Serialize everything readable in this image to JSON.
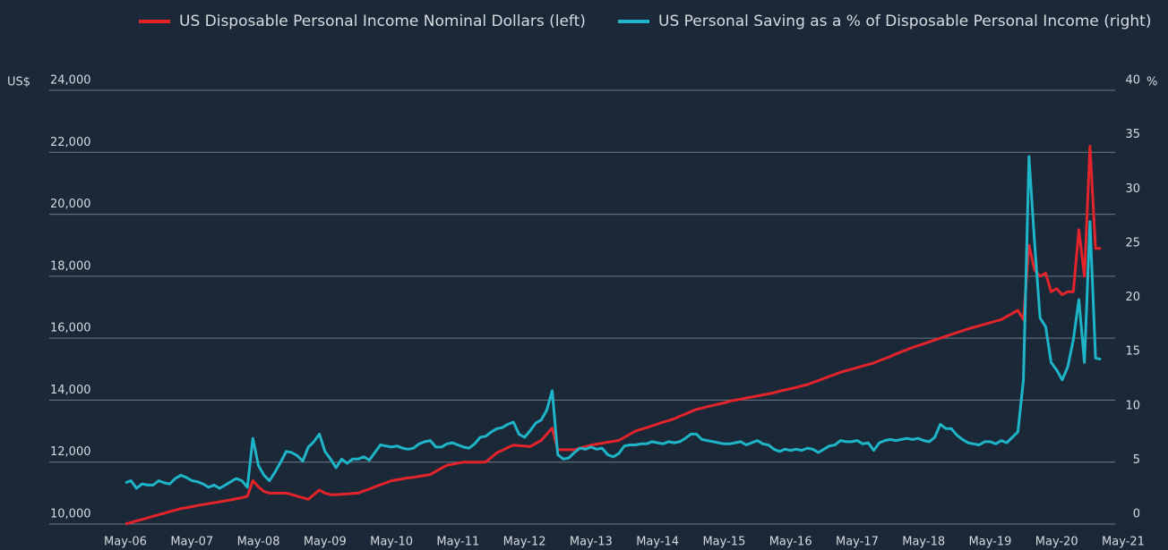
{
  "chart_data": {
    "type": "line",
    "ylabel": "US$",
    "y2label": "%",
    "categories": [
      "May-06",
      null,
      null,
      null,
      null,
      null,
      null,
      null,
      null,
      null,
      null,
      null,
      "May-07",
      null,
      null,
      null,
      null,
      null,
      null,
      null,
      null,
      null,
      null,
      null,
      "May-08",
      null,
      null,
      null,
      null,
      null,
      null,
      null,
      null,
      null,
      null,
      null,
      "May-09",
      null,
      null,
      null,
      null,
      null,
      null,
      null,
      null,
      null,
      null,
      null,
      "May-10",
      null,
      null,
      null,
      null,
      null,
      null,
      null,
      null,
      null,
      null,
      null,
      "May-11",
      null,
      null,
      null,
      null,
      null,
      null,
      null,
      null,
      null,
      null,
      null,
      "May-12",
      null,
      null,
      null,
      null,
      null,
      null,
      null,
      null,
      null,
      null,
      null,
      "May-13",
      null,
      null,
      null,
      null,
      null,
      null,
      null,
      null,
      null,
      null,
      null,
      "May-14",
      null,
      null,
      null,
      null,
      null,
      null,
      null,
      null,
      null,
      null,
      null,
      "May-15",
      null,
      null,
      null,
      null,
      null,
      null,
      null,
      null,
      null,
      null,
      null,
      "May-16",
      null,
      null,
      null,
      null,
      null,
      null,
      null,
      null,
      null,
      null,
      null,
      "May-17",
      null,
      null,
      null,
      null,
      null,
      null,
      null,
      null,
      null,
      null,
      null,
      "May-18",
      null,
      null,
      null,
      null,
      null,
      null,
      null,
      null,
      null,
      null,
      null,
      "May-19",
      null,
      null,
      null,
      null,
      null,
      null,
      null,
      null,
      null,
      null,
      null,
      "May-20",
      null,
      null,
      null,
      null,
      null,
      null,
      null,
      null,
      null,
      null,
      null,
      "May-21"
    ],
    "series": [
      {
        "name": "US Disposable Personal Income Nominal Dollars (left)",
        "color": "#e3242b",
        "axis": "y",
        "values": [
          10000,
          10050,
          10100,
          10150,
          10200,
          10250,
          10300,
          10350,
          10400,
          10450,
          10500,
          10530,
          10560,
          10600,
          10630,
          10660,
          10690,
          10720,
          10750,
          10780,
          10820,
          10850,
          10900,
          11400,
          11200,
          11050,
          11000,
          11000,
          11000,
          11000,
          10950,
          10900,
          10850,
          10800,
          10950,
          11100,
          11000,
          10950,
          10950,
          10960,
          10970,
          10990,
          11000,
          11070,
          11130,
          11200,
          11270,
          11330,
          11400,
          11430,
          11460,
          11490,
          11510,
          11540,
          11570,
          11600,
          11700,
          11800,
          11900,
          11930,
          11970,
          12000,
          12000,
          12000,
          12000,
          12000,
          12150,
          12300,
          12380,
          12470,
          12550,
          12530,
          12520,
          12500,
          12600,
          12700,
          12900,
          13100,
          12400,
          12400,
          12400,
          12400,
          12450,
          12500,
          12550,
          12580,
          12610,
          12640,
          12670,
          12700,
          12800,
          12900,
          13000,
          13060,
          13110,
          13170,
          13230,
          13290,
          13340,
          13400,
          13480,
          13550,
          13630,
          13700,
          13740,
          13790,
          13830,
          13870,
          13910,
          13960,
          14000,
          14030,
          14070,
          14100,
          14130,
          14170,
          14200,
          14240,
          14290,
          14330,
          14370,
          14410,
          14460,
          14500,
          14570,
          14630,
          14700,
          14770,
          14830,
          14900,
          14950,
          15000,
          15050,
          15100,
          15150,
          15200,
          15270,
          15340,
          15410,
          15490,
          15560,
          15630,
          15700,
          15760,
          15820,
          15880,
          15940,
          16000,
          16060,
          16120,
          16180,
          16240,
          16300,
          16350,
          16400,
          16450,
          16500,
          16550,
          16600,
          16700,
          16800,
          16900,
          16600,
          19000,
          18200,
          18000,
          18100,
          17500,
          17600,
          17400,
          17500,
          17500,
          19500,
          18000,
          22200,
          18900,
          18900,
          null,
          null,
          null,
          null
        ]
      },
      {
        "name": "US Personal Saving as a % of Disposable Personal Income (right)",
        "color": "#1fb5c9",
        "axis": "y2",
        "values": [
          3.8,
          4.0,
          3.3,
          3.7,
          3.6,
          3.6,
          4.0,
          3.8,
          3.7,
          4.2,
          4.5,
          4.3,
          4.0,
          3.9,
          3.7,
          3.4,
          3.6,
          3.3,
          3.6,
          3.9,
          4.2,
          4.0,
          3.4,
          7.9,
          5.4,
          4.5,
          4.0,
          4.8,
          5.7,
          6.7,
          6.6,
          6.3,
          5.8,
          7.1,
          7.6,
          8.3,
          6.7,
          6.0,
          5.2,
          6.0,
          5.6,
          6.0,
          6.0,
          6.2,
          5.9,
          6.6,
          7.3,
          7.2,
          7.1,
          7.2,
          7.0,
          6.9,
          7.0,
          7.4,
          7.6,
          7.7,
          7.1,
          7.1,
          7.4,
          7.5,
          7.3,
          7.1,
          7.0,
          7.4,
          8.0,
          8.1,
          8.5,
          8.8,
          8.9,
          9.2,
          9.4,
          8.3,
          8.0,
          8.6,
          9.3,
          9.6,
          10.5,
          12.3,
          6.4,
          6.0,
          6.1,
          6.6,
          7.0,
          6.9,
          7.1,
          6.9,
          7.0,
          6.4,
          6.2,
          6.5,
          7.2,
          7.3,
          7.3,
          7.4,
          7.4,
          7.6,
          7.5,
          7.4,
          7.6,
          7.5,
          7.6,
          7.9,
          8.3,
          8.3,
          7.8,
          7.7,
          7.6,
          7.5,
          7.4,
          7.4,
          7.5,
          7.6,
          7.3,
          7.5,
          7.7,
          7.4,
          7.3,
          6.9,
          6.7,
          6.9,
          6.8,
          6.9,
          6.8,
          7.0,
          6.9,
          6.6,
          6.9,
          7.2,
          7.3,
          7.7,
          7.6,
          7.6,
          7.7,
          7.4,
          7.5,
          6.8,
          7.5,
          7.7,
          7.8,
          7.7,
          7.8,
          7.9,
          7.8,
          7.9,
          7.7,
          7.6,
          8.0,
          9.2,
          8.8,
          8.8,
          8.2,
          7.8,
          7.5,
          7.4,
          7.3,
          7.6,
          7.6,
          7.4,
          7.7,
          7.5,
          8.0,
          8.5,
          13.3,
          33.9,
          26,
          19.0,
          18.2,
          14.9,
          14.2,
          13.3,
          14.5,
          17,
          20.7,
          14.9,
          27.9,
          15.3,
          15.2,
          null,
          null,
          null,
          null
        ]
      }
    ],
    "ylim": [
      10000,
      24000
    ],
    "yticks": [
      {
        "value": 10000,
        "label": "10,000"
      },
      {
        "value": 12000,
        "label": "12,000"
      },
      {
        "value": 14000,
        "label": "14,000"
      },
      {
        "value": 16000,
        "label": "16,000"
      },
      {
        "value": 18000,
        "label": "18,000"
      },
      {
        "value": 20000,
        "label": "20,000"
      },
      {
        "value": 22000,
        "label": "22,000"
      },
      {
        "value": 24000,
        "label": "24,000"
      }
    ],
    "y2lim": [
      0,
      40
    ],
    "y2ticks": [
      0,
      5,
      10,
      15,
      20,
      25,
      30,
      35,
      40
    ],
    "grid": true
  }
}
